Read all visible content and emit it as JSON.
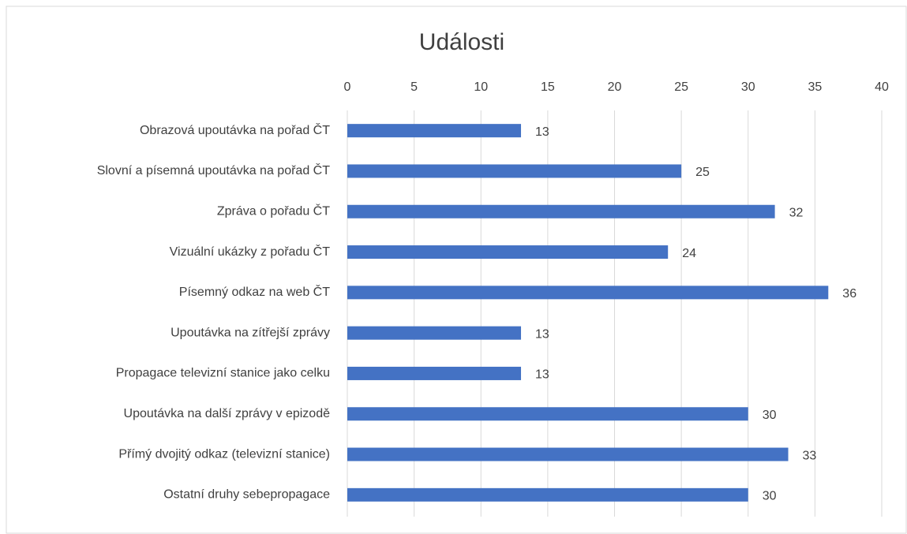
{
  "chart_data": {
    "type": "bar",
    "orientation": "horizontal",
    "title": "Události",
    "categories": [
      "Obrazová upoutávka na pořad ČT",
      "Slovní a písemná upoutávka na pořad ČT",
      "Zpráva o pořadu ČT",
      "Vizuální ukázky z pořadu ČT",
      "Písemný odkaz na web ČT",
      "Upoutávka na zítřejší zprávy",
      "Propagace televizní stanice jako celku",
      "Upoutávka na další zprávy v epizodě",
      "Přímý dvojitý odkaz (televizní stanice)",
      "Ostatní druhy sebepropagace"
    ],
    "values": [
      13,
      25,
      32,
      24,
      36,
      13,
      13,
      30,
      33,
      30
    ],
    "color": "#4472c4",
    "xlim": [
      0,
      40
    ],
    "xticks": [
      0,
      5,
      10,
      15,
      20,
      25,
      30,
      35,
      40
    ],
    "grid": true,
    "data_labels": true
  }
}
